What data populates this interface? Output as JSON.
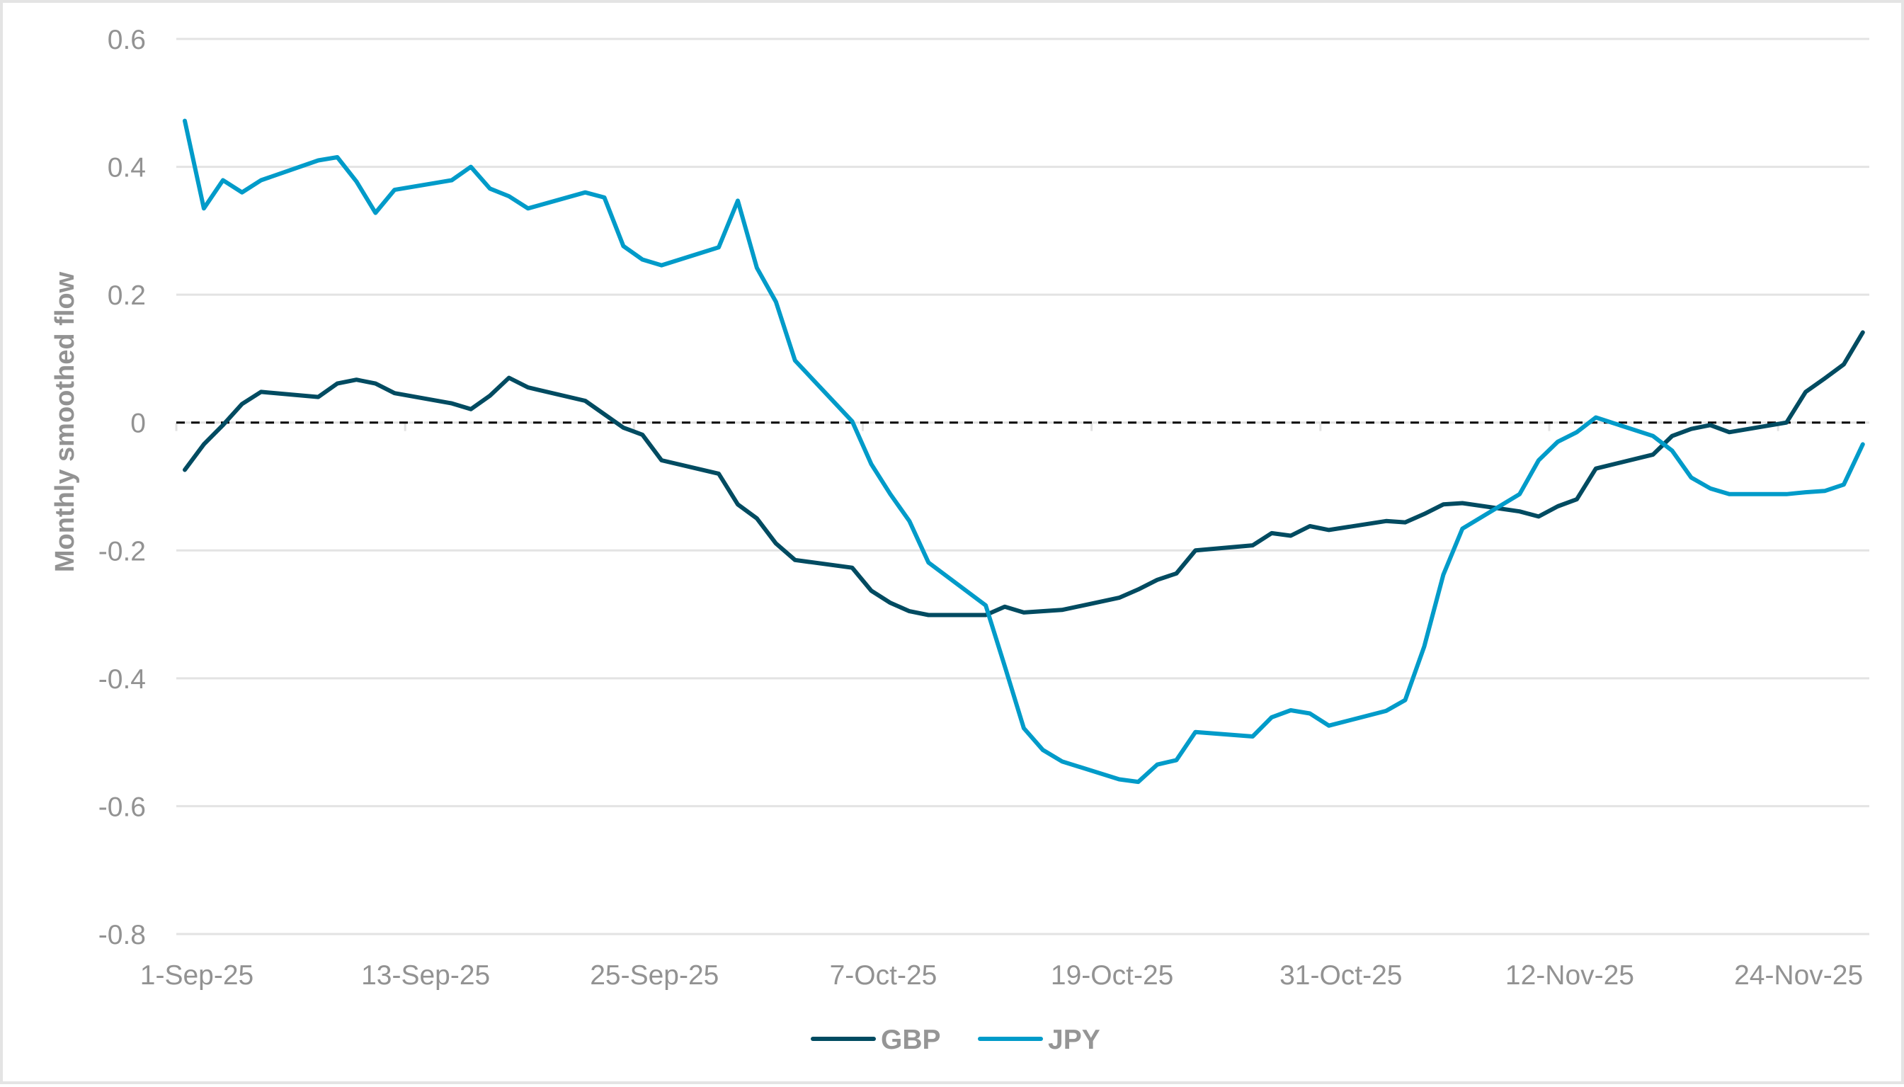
{
  "chart_data": {
    "type": "line",
    "title": "",
    "xlabel": "",
    "ylabel": "Monthly smoothed flow",
    "ylim": [
      -0.8,
      0.6
    ],
    "yticks": [
      "0.6",
      "0.4",
      "0.2",
      "0",
      "-0.2",
      "-0.4",
      "-0.6",
      "-0.8"
    ],
    "ytick_values": [
      0.6,
      0.4,
      0.2,
      0,
      -0.2,
      -0.4,
      -0.6,
      -0.8
    ],
    "xtick_labels": [
      "1-Sep-25",
      "13-Sep-25",
      "25-Sep-25",
      "7-Oct-25",
      "19-Oct-25",
      "31-Oct-25",
      "12-Nov-25",
      "24-Nov-25"
    ],
    "grid": true,
    "zero_line": "dashed",
    "legend_position": "bottom",
    "series": [
      {
        "name": "GBP",
        "color": "#004B61",
        "x_day_offset": [
          0,
          1,
          2,
          3,
          4,
          7,
          8,
          9,
          10,
          11,
          14,
          15,
          16,
          17,
          18,
          21,
          22,
          23,
          24,
          25,
          28,
          29,
          30,
          31,
          32,
          35,
          36,
          37,
          38,
          39,
          42,
          43,
          44,
          46,
          49,
          50,
          51,
          52,
          53,
          56,
          57,
          58,
          59,
          60,
          63,
          64,
          65,
          66,
          67,
          70,
          71,
          72,
          73,
          74,
          77,
          78,
          79,
          80,
          81,
          84,
          85,
          86,
          87,
          88
        ],
        "values": [
          -0.074,
          -0.034,
          -0.004,
          0.029,
          0.048,
          0.04,
          0.061,
          0.067,
          0.061,
          0.046,
          0.03,
          0.021,
          0.042,
          0.07,
          0.055,
          0.034,
          0.013,
          -0.008,
          -0.019,
          -0.059,
          -0.08,
          -0.128,
          -0.15,
          -0.189,
          -0.215,
          -0.227,
          -0.263,
          -0.282,
          -0.295,
          -0.301,
          -0.301,
          -0.288,
          -0.297,
          -0.293,
          -0.274,
          -0.261,
          -0.246,
          -0.236,
          -0.2,
          -0.192,
          -0.173,
          -0.177,
          -0.162,
          -0.168,
          -0.154,
          -0.156,
          -0.143,
          -0.128,
          -0.126,
          -0.139,
          -0.147,
          -0.131,
          -0.12,
          -0.072,
          -0.05,
          -0.021,
          -0.01,
          -0.004,
          -0.015,
          0.0,
          0.048,
          0.069,
          0.091,
          0.141
        ]
      },
      {
        "name": "JPY",
        "color": "#009BC9",
        "x_day_offset": [
          0,
          1,
          2,
          3,
          4,
          7,
          8,
          9,
          10,
          11,
          14,
          15,
          16,
          17,
          18,
          21,
          22,
          23,
          24,
          25,
          28,
          29,
          30,
          31,
          32,
          35,
          36,
          37,
          38,
          39,
          42,
          43,
          44,
          45,
          46,
          49,
          50,
          51,
          52,
          53,
          56,
          57,
          58,
          59,
          60,
          63,
          64,
          65,
          66,
          67,
          70,
          71,
          72,
          73,
          74,
          77,
          78,
          79,
          80,
          81,
          84,
          85,
          86,
          87,
          88
        ],
        "values": [
          0.472,
          0.335,
          0.379,
          0.36,
          0.379,
          0.41,
          0.415,
          0.377,
          0.328,
          0.364,
          0.379,
          0.4,
          0.366,
          0.354,
          0.335,
          0.36,
          0.352,
          0.276,
          0.255,
          0.246,
          0.274,
          0.347,
          0.242,
          0.189,
          0.097,
          0.002,
          -0.065,
          -0.112,
          -0.154,
          -0.219,
          -0.286,
          -0.381,
          -0.478,
          -0.512,
          -0.53,
          -0.558,
          -0.562,
          -0.535,
          -0.528,
          -0.484,
          -0.491,
          -0.461,
          -0.45,
          -0.455,
          -0.474,
          -0.451,
          -0.434,
          -0.35,
          -0.238,
          -0.166,
          -0.112,
          -0.059,
          -0.03,
          -0.015,
          0.008,
          -0.021,
          -0.044,
          -0.086,
          -0.103,
          -0.112,
          -0.112,
          -0.109,
          -0.107,
          -0.097,
          -0.034
        ]
      }
    ]
  },
  "legend": {
    "items": [
      {
        "label": "GBP",
        "color": "#004B61"
      },
      {
        "label": "JPY",
        "color": "#009BC9"
      }
    ]
  }
}
